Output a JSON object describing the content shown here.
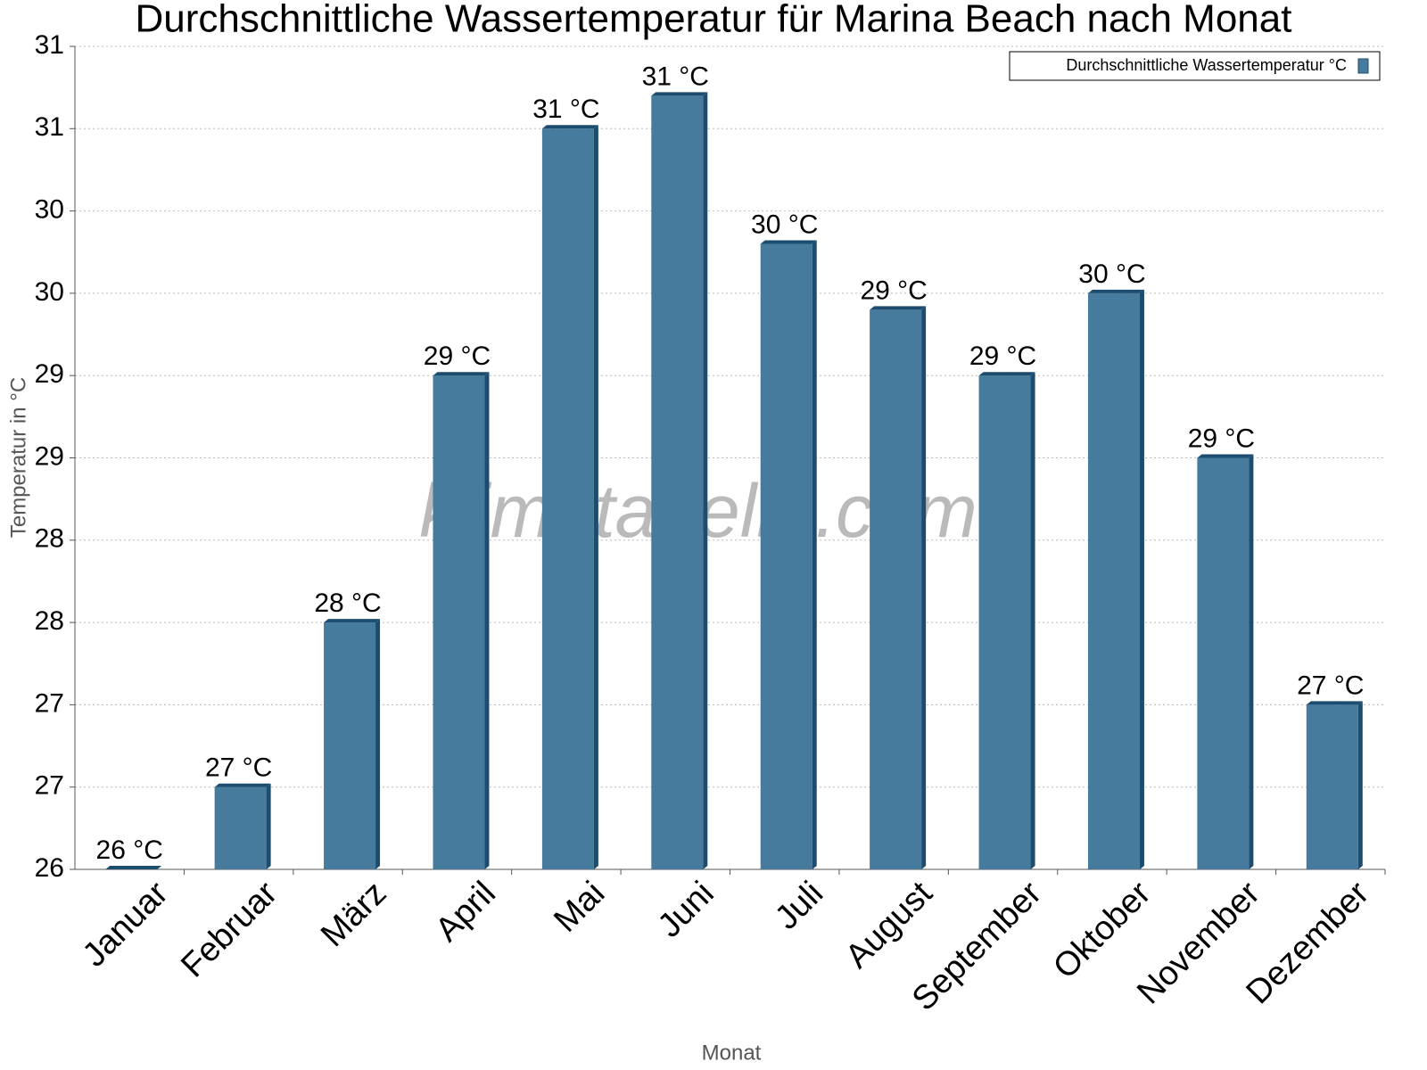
{
  "chart_data": {
    "type": "bar",
    "title": "Durchschnittliche Wassertemperatur für Marina Beach nach Monat",
    "x_label": "Monat",
    "y_label": "Temperatur in °C",
    "watermark": "klimatabelle.com",
    "categories": [
      "Januar",
      "Februar",
      "März",
      "April",
      "Mai",
      "Juni",
      "Juli",
      "August",
      "September",
      "Oktober",
      "November",
      "Dezember"
    ],
    "series": [
      {
        "name": "Durchschnittliche Wassertemperatur °C",
        "color": "#467b9e",
        "values": [
          26,
          26.5,
          27.5,
          29,
          30.5,
          30.7,
          29.8,
          29.4,
          29,
          29.5,
          28.5,
          27
        ],
        "value_labels": [
          "26 °C",
          "27 °C",
          "28 °C",
          "29 °C",
          "31 °C",
          "31 °C",
          "30 °C",
          "29 °C",
          "29 °C",
          "30 °C",
          "29 °C",
          "27 °C"
        ]
      }
    ],
    "ylim": [
      26,
      31
    ],
    "yticks": [
      26,
      {
        "value": 26.5,
        "label": "27"
      },
      27,
      {
        "value": 27.5,
        "label": "28"
      },
      28,
      {
        "value": 28.5,
        "label": "29"
      },
      29,
      {
        "value": 29.5,
        "label": "30"
      },
      30,
      {
        "value": 30.5,
        "label": "31"
      },
      31
    ],
    "grid": true,
    "legend": "top-right"
  }
}
